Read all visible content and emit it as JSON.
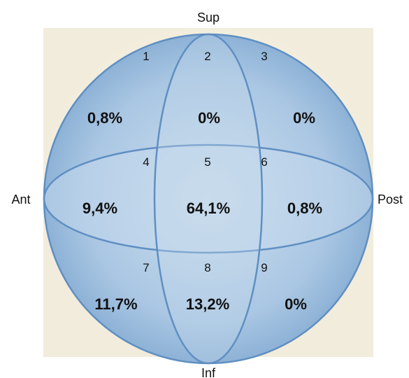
{
  "labels": {
    "sup": "Sup",
    "inf": "Inf",
    "ant": "Ant",
    "post": "Post"
  },
  "zones": [
    {
      "number": "1",
      "percent": "0,8%"
    },
    {
      "number": "2",
      "percent": "0%"
    },
    {
      "number": "3",
      "percent": "0%"
    },
    {
      "number": "4",
      "percent": "9,4%"
    },
    {
      "number": "5",
      "percent": "64,1%"
    },
    {
      "number": "6",
      "percent": "0,8%"
    },
    {
      "number": "7",
      "percent": "11,7%"
    },
    {
      "number": "8",
      "percent": "13,2%"
    },
    {
      "number": "9",
      "percent": "0%"
    }
  ],
  "colors": {
    "sphere_fill_center": "#c8dcec",
    "sphere_fill_edge": "#8fb3d6",
    "outline": "#5f8fc2",
    "background": "#f6f1e3"
  }
}
